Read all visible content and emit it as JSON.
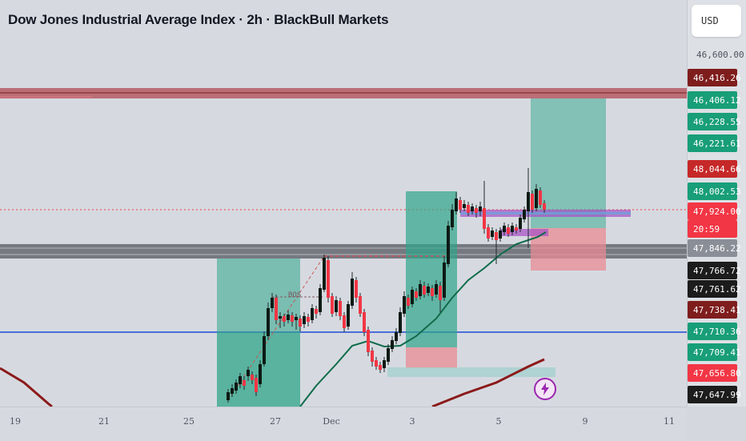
{
  "header": {
    "title": "Dow Jones Industrial Average Index · 2h · BlackBull Markets"
  },
  "price_axis": {
    "currency": "USD",
    "top_label": "46,600.00"
  },
  "price_tags": [
    {
      "label": "46,416.26",
      "color": "#7f1d1d"
    },
    {
      "label": "46,406.12",
      "color": "#189e78"
    },
    {
      "label": "46,228.55",
      "color": "#189e78"
    },
    {
      "label": "46,221.61",
      "color": "#189e78"
    },
    {
      "label": "48,044.66",
      "color": "#c62828"
    },
    {
      "label": "48,002.53",
      "color": "#189e78"
    },
    {
      "label": "47,924.00",
      "color": "#f23645"
    },
    {
      "label": "20:59",
      "color": "#f23645"
    },
    {
      "label": "47,846.22",
      "color": "#8a8e96"
    },
    {
      "label": "47,766.72",
      "color": "#1c1c1c"
    },
    {
      "label": "47,761.62",
      "color": "#1c1c1c"
    },
    {
      "label": "47,738.41",
      "color": "#7f1d1d"
    },
    {
      "label": "47,710.36",
      "color": "#189e78"
    },
    {
      "label": "47,709.41",
      "color": "#189e78"
    },
    {
      "label": "47,656.80",
      "color": "#f23645"
    },
    {
      "label": "47,647.99",
      "color": "#1c1c1c"
    }
  ],
  "time_axis": {
    "labels": [
      "19",
      "21",
      "25",
      "27",
      "Dec",
      "3",
      "5",
      "9",
      "11"
    ]
  },
  "annotations": {
    "bos": "BOS"
  },
  "colors": {
    "bull": "#189e78",
    "bear": "#f23645",
    "resistance": "#a83a45",
    "support": "#6b6e75",
    "level": "#4a6fd6",
    "ema_fast": "#0f6b4a",
    "ema_slow": "#8b1a1a"
  },
  "icons": {
    "alert": "lightning-icon"
  }
}
